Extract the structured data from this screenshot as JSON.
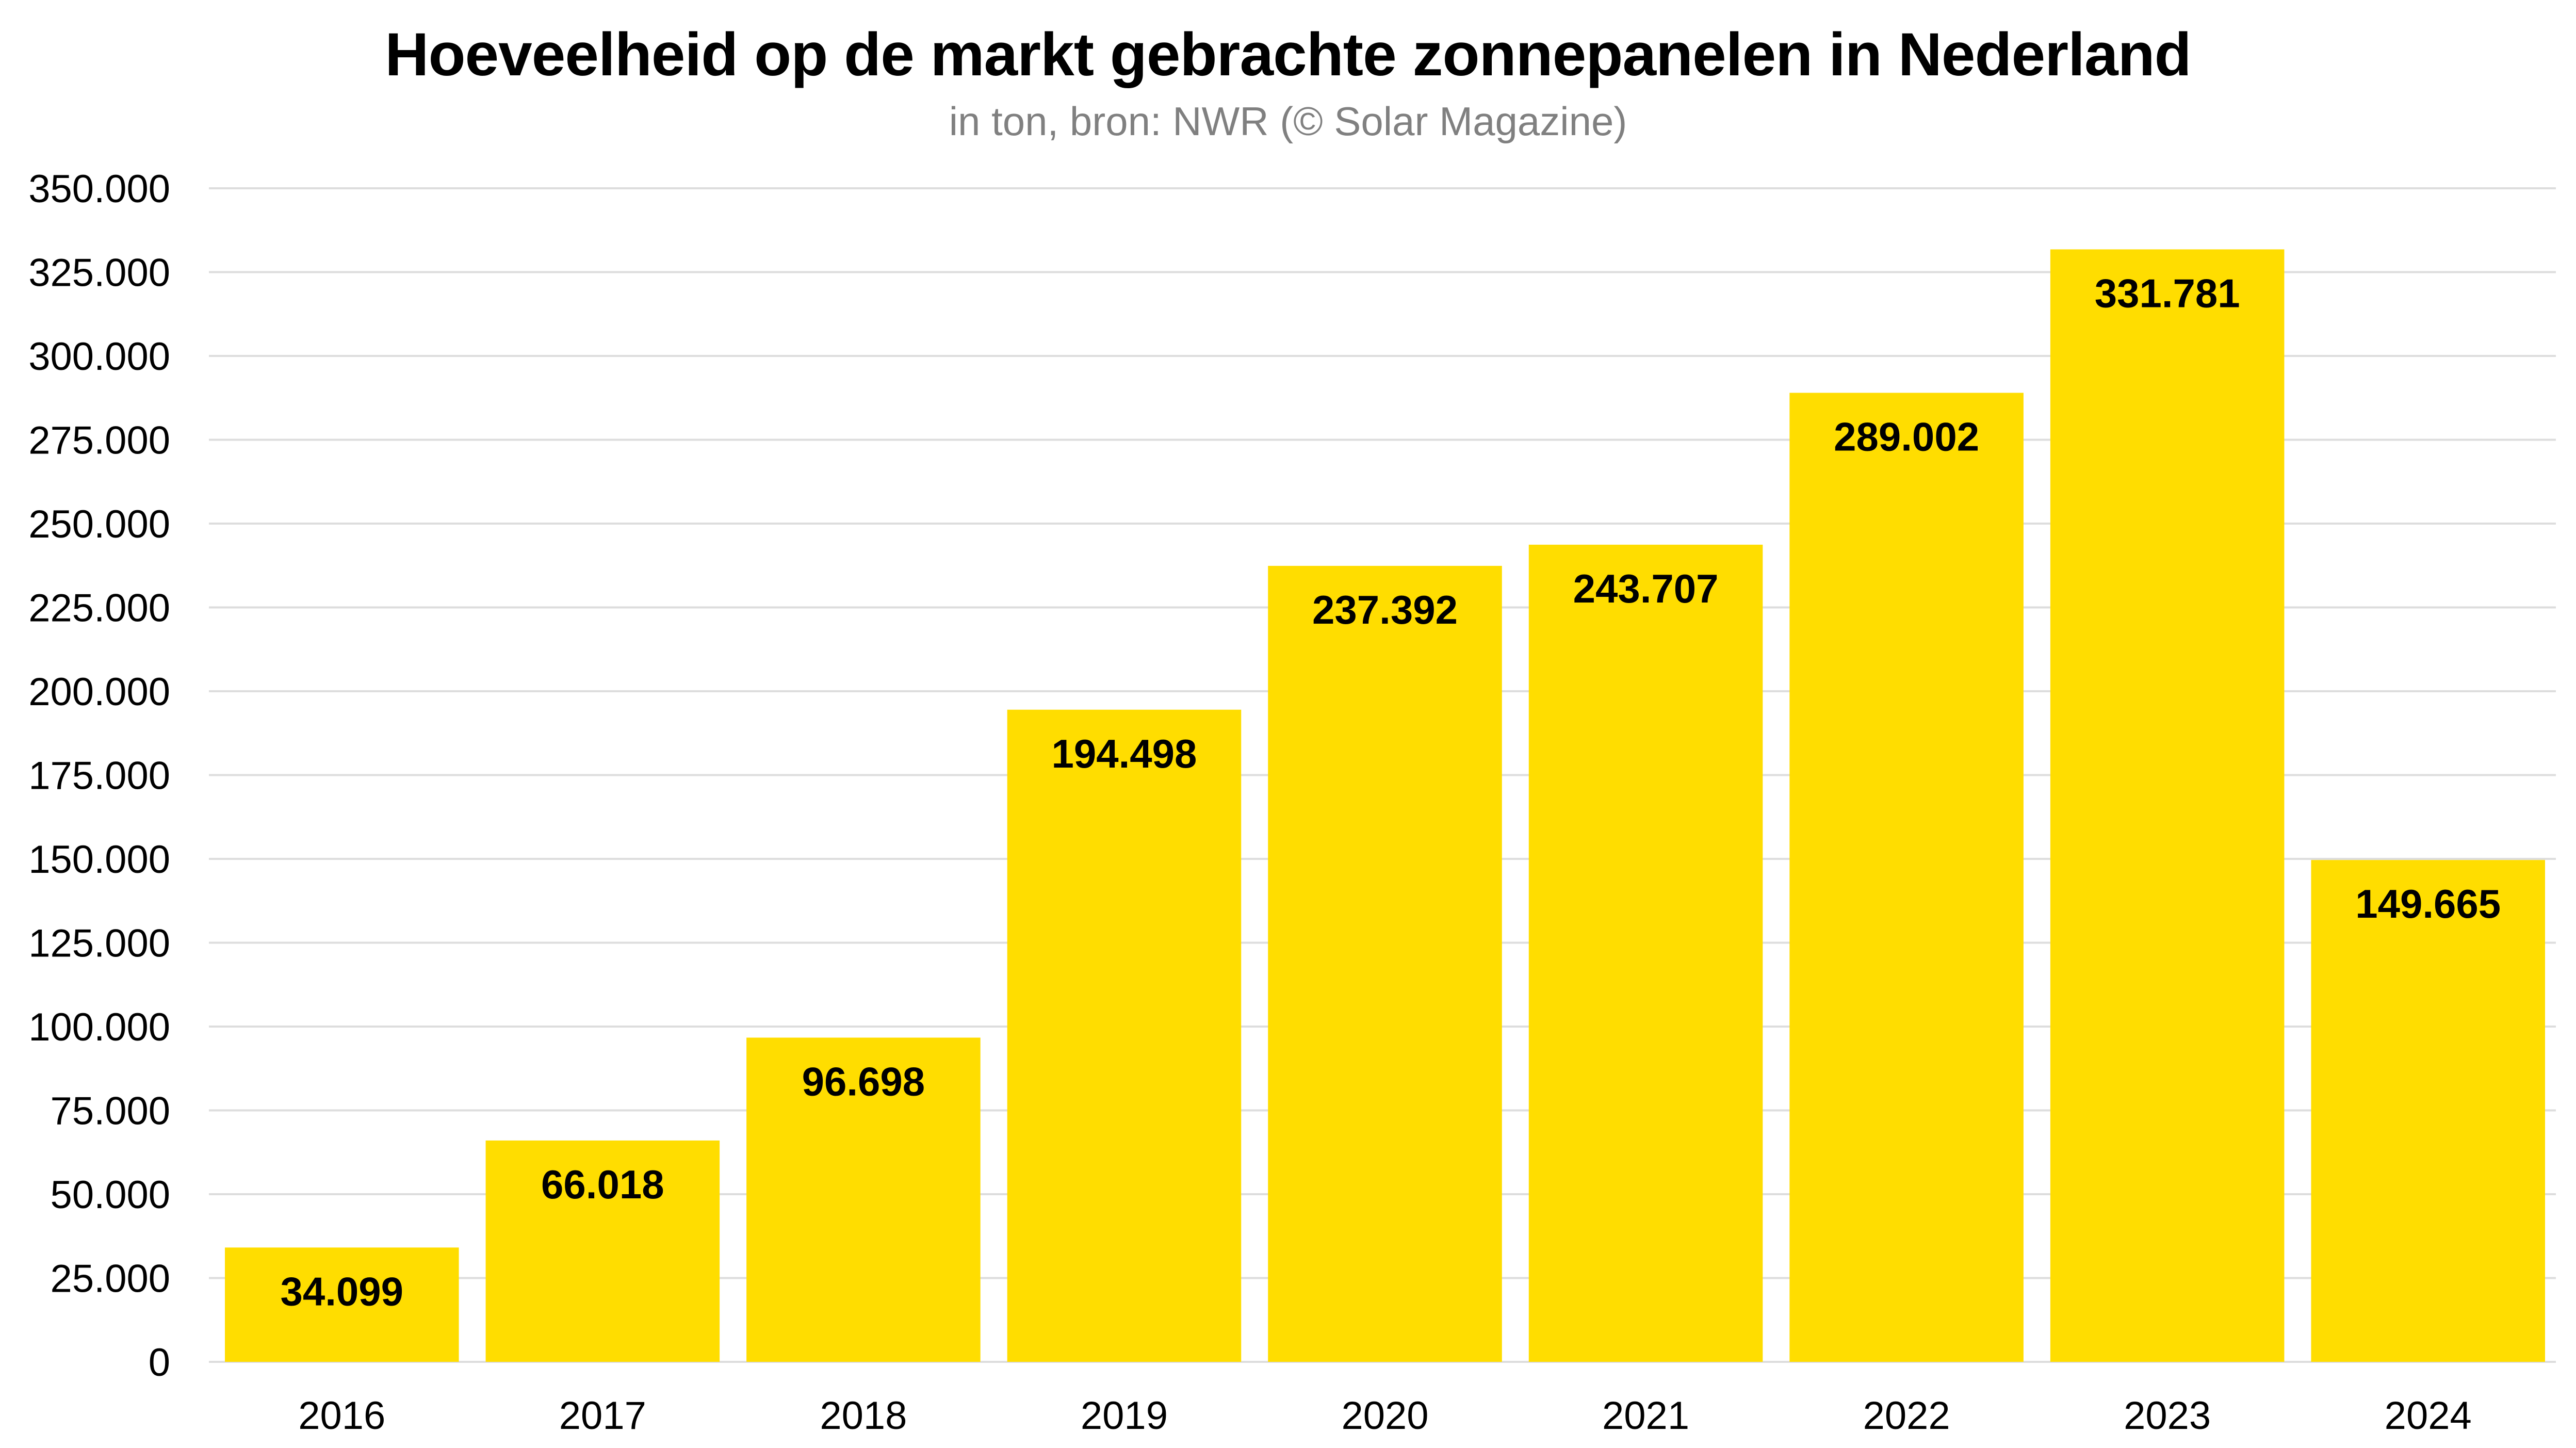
{
  "header": {
    "title": "Hoeveelheid op de markt gebrachte zonnepanelen in Nederland",
    "subtitle": "in ton, bron: NWR (© Solar Magazine)"
  },
  "colors": {
    "bar": "#FFDD00",
    "grid": "#DDDDDD",
    "text": "#000000",
    "subtitle": "#808080"
  },
  "chart_data": {
    "type": "bar",
    "title": "Hoeveelheid op de markt gebrachte zonnepanelen in Nederland",
    "subtitle": "in ton, bron: NWR (© Solar Magazine)",
    "xlabel": "",
    "ylabel": "",
    "categories": [
      "2016",
      "2017",
      "2018",
      "2019",
      "2020",
      "2021",
      "2022",
      "2023",
      "2024"
    ],
    "values": [
      34099,
      66018,
      96698,
      194498,
      237392,
      243707,
      289002,
      331781,
      149665
    ],
    "value_labels": [
      "34.099",
      "66.018",
      "96.698",
      "194.498",
      "237.392",
      "243.707",
      "289.002",
      "331.781",
      "149.665"
    ],
    "ylim": [
      0,
      350000
    ],
    "yticks": [
      0,
      25000,
      50000,
      75000,
      100000,
      125000,
      150000,
      175000,
      200000,
      225000,
      250000,
      275000,
      300000,
      325000,
      350000
    ],
    "ytick_labels": [
      "0",
      "25.000",
      "50.000",
      "75.000",
      "100.000",
      "125.000",
      "150.000",
      "175.000",
      "200.000",
      "225.000",
      "250.000",
      "275.000",
      "300.000",
      "325.000",
      "350.000"
    ],
    "grid": true,
    "legend": "none",
    "data_labels_position": "inside-top"
  }
}
